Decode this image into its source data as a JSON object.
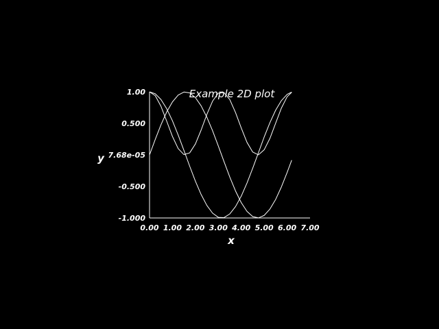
{
  "colors": {
    "background": "#000000",
    "foreground": "#ffffff"
  },
  "chart_data": {
    "type": "line",
    "title": "Example 2D plot",
    "xlabel": "x",
    "ylabel": "y",
    "xlim": [
      0,
      7
    ],
    "ylim": [
      -1,
      1
    ],
    "x_ticks": [
      "0.00",
      "1.00",
      "2.00",
      "3.00",
      "4.00",
      "5.00",
      "6.00",
      "7.00"
    ],
    "y_ticks": [
      "-1.000",
      "-0.500",
      "7.68e-05",
      "0.500",
      "1.00"
    ],
    "grid": false,
    "x": [
      0.0,
      0.25,
      0.5,
      0.75,
      1.0,
      1.25,
      1.5,
      1.75,
      2.0,
      2.25,
      2.5,
      2.75,
      3.0,
      3.25,
      3.5,
      3.75,
      4.0,
      4.25,
      4.5,
      4.75,
      5.0,
      5.25,
      5.5,
      5.75,
      6.0,
      6.2
    ],
    "series": [
      {
        "values": [
          0.0,
          0.247,
          0.479,
          0.682,
          0.841,
          0.949,
          0.997,
          0.984,
          0.909,
          0.778,
          0.598,
          0.382,
          0.141,
          -0.108,
          -0.351,
          -0.572,
          -0.757,
          -0.895,
          -0.978,
          -0.999,
          -0.959,
          -0.859,
          -0.706,
          -0.508,
          -0.279,
          -0.083
        ]
      },
      {
        "values": [
          1.0,
          0.969,
          0.878,
          0.732,
          0.54,
          0.315,
          0.071,
          -0.178,
          -0.416,
          -0.628,
          -0.801,
          -0.924,
          -0.99,
          -0.994,
          -0.936,
          -0.82,
          -0.654,
          -0.446,
          -0.211,
          0.036,
          0.284,
          0.512,
          0.709,
          0.861,
          0.96,
          0.997
        ]
      },
      {
        "values": [
          1.0,
          0.939,
          0.77,
          0.534,
          0.292,
          0.1,
          0.005,
          0.032,
          0.173,
          0.394,
          0.642,
          0.853,
          0.98,
          0.988,
          0.877,
          0.672,
          0.427,
          0.199,
          0.045,
          0.001,
          0.081,
          0.262,
          0.503,
          0.742,
          0.922,
          0.993
        ]
      }
    ]
  }
}
